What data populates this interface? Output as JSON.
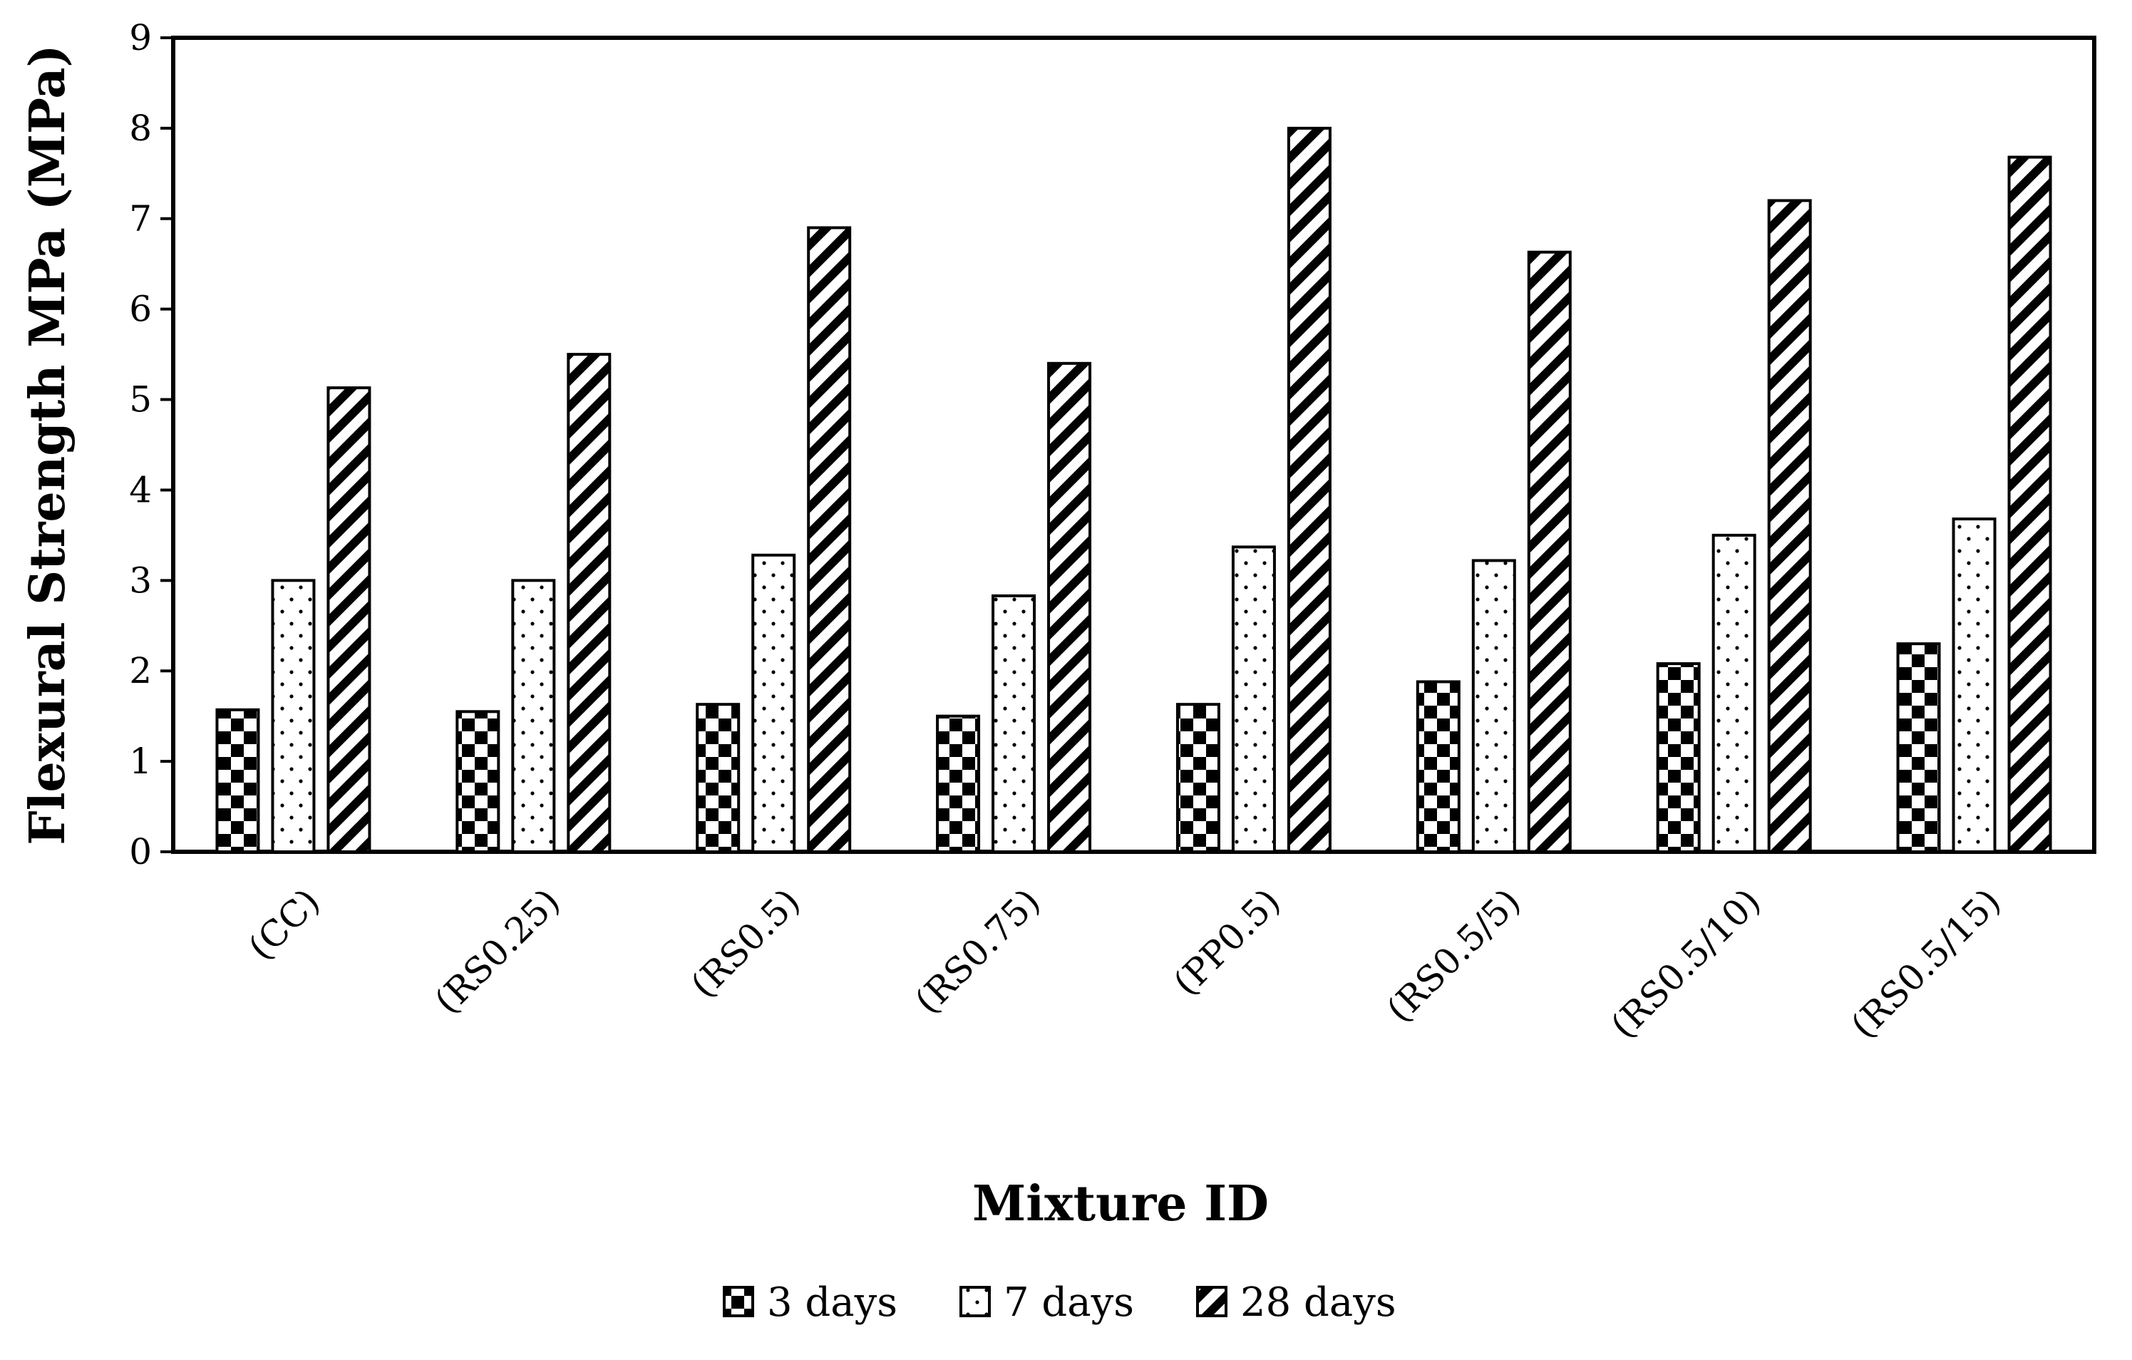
{
  "chart_data": {
    "type": "bar",
    "title": "",
    "xlabel": "Mixture ID",
    "ylabel": "Flexural Strength MPa (MPa)",
    "ylim": [
      0,
      9
    ],
    "yticks": [
      "0",
      "1",
      "2",
      "3",
      "4",
      "5",
      "6",
      "7",
      "8",
      "9"
    ],
    "grid": false,
    "legend_position": "bottom",
    "categories": [
      "(CC)",
      "(RS0.25)",
      "(RS0.5)",
      "(RS0.75)",
      "(PP0.5)",
      "(RS0.5/5)",
      "(RS0.5/10)",
      "(RS0.5/15)"
    ],
    "series": [
      {
        "name": "3 days",
        "pattern": "checkerboard",
        "values": [
          1.57,
          1.55,
          1.63,
          1.5,
          1.63,
          1.88,
          2.08,
          2.3
        ]
      },
      {
        "name": "7 days",
        "pattern": "dots",
        "values": [
          3.0,
          3.0,
          3.28,
          2.83,
          3.37,
          3.22,
          3.5,
          3.68
        ]
      },
      {
        "name": "28 days",
        "pattern": "diagonal-stripes",
        "values": [
          5.13,
          5.5,
          6.9,
          5.4,
          8.0,
          6.63,
          7.2,
          7.68
        ]
      }
    ],
    "colors": {
      "fill": "#000000",
      "background": "#ffffff",
      "stroke": "#000000"
    }
  }
}
